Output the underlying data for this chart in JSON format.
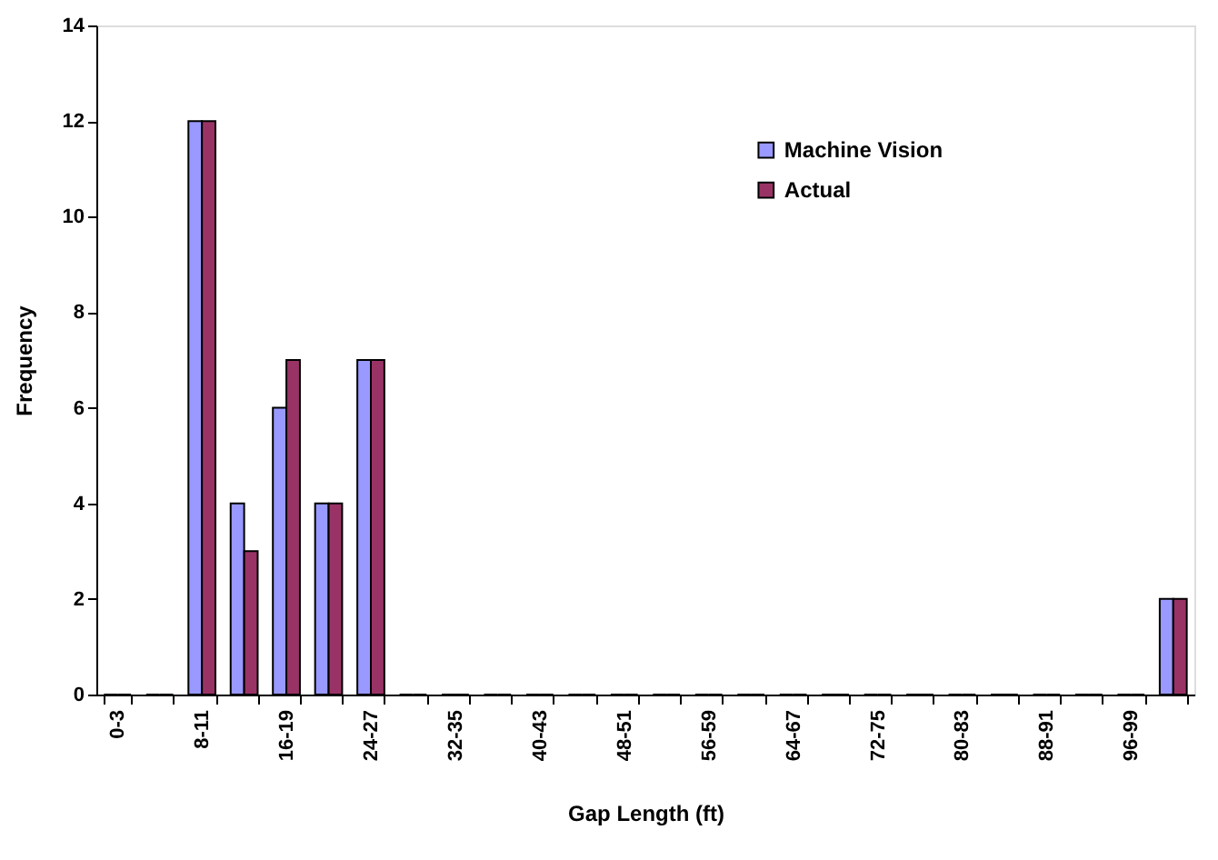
{
  "chart_data": {
    "type": "bar",
    "xlabel": "Gap Length (ft)",
    "ylabel": "Frequency",
    "categories": [
      "0-3",
      null,
      "8-11",
      null,
      "16-19",
      null,
      "24-27",
      null,
      "32-35",
      null,
      "40-43",
      null,
      "48-51",
      null,
      "56-59",
      null,
      "64-67",
      null,
      "72-75",
      null,
      "80-83",
      null,
      "88-91",
      null,
      "96-99",
      null
    ],
    "series": [
      {
        "name": "Machine Vision",
        "color": "#9999ff",
        "values": [
          0,
          0,
          12,
          4,
          6,
          4,
          7,
          0,
          0,
          0,
          0,
          0,
          0,
          0,
          0,
          0,
          0,
          0,
          0,
          0,
          0,
          0,
          0,
          0,
          0,
          2
        ]
      },
      {
        "name": "Actual",
        "color": "#993366",
        "values": [
          0,
          0,
          12,
          3,
          7,
          4,
          7,
          0,
          0,
          0,
          0,
          0,
          0,
          0,
          0,
          0,
          0,
          0,
          0,
          0,
          0,
          0,
          0,
          0,
          0,
          2
        ]
      }
    ],
    "ylim": [
      0,
      14
    ],
    "yticks": [
      0,
      2,
      4,
      6,
      8,
      10,
      12,
      14
    ],
    "legend": "top right",
    "grid": false
  }
}
